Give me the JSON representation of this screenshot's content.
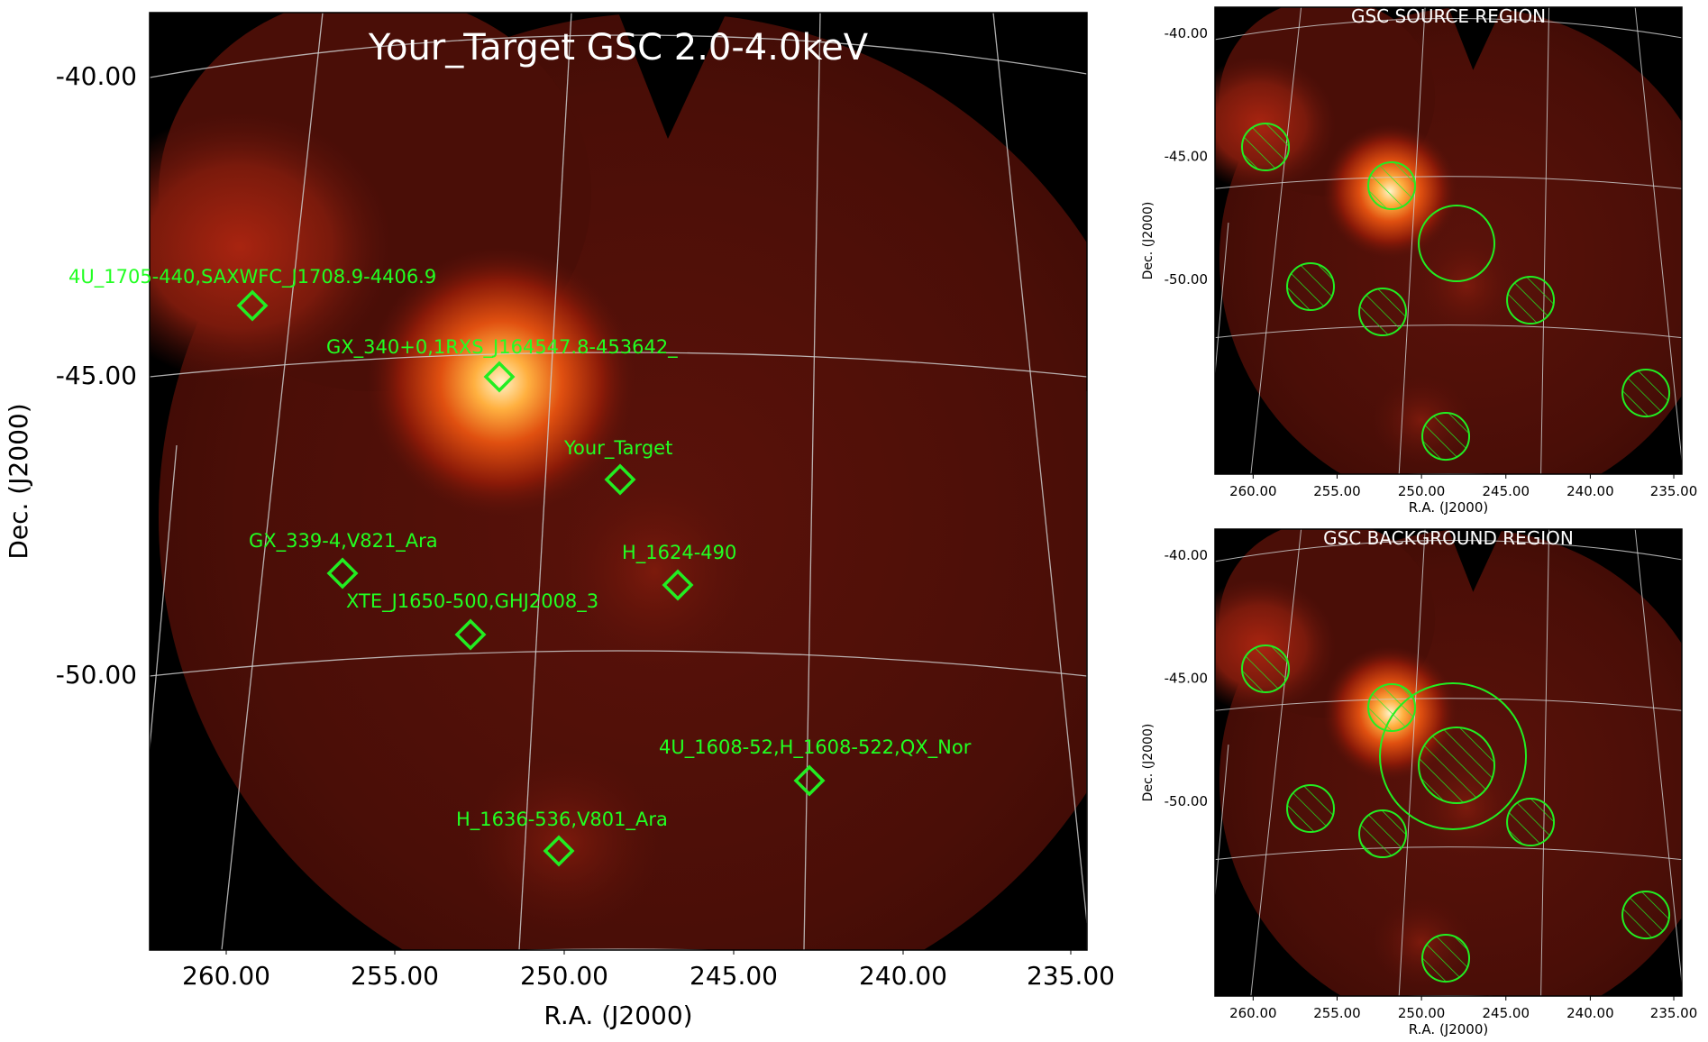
{
  "main_panel": {
    "title": "Your_Target GSC 2.0-4.0keV",
    "xlabel": "R.A. (J2000)",
    "ylabel": "Dec. (J2000)",
    "xticks": [
      "260.00",
      "255.00",
      "250.00",
      "245.00",
      "240.00",
      "235.00"
    ],
    "yticks": [
      "-40.00",
      "-45.00",
      "-50.00"
    ],
    "sources": [
      {
        "label": "4U_1705-440,SAXWFC_J1708.9-4406.9"
      },
      {
        "label": "GX_340+0,1RXS_J164547.8-453642_"
      },
      {
        "label": "Your_Target"
      },
      {
        "label": "GX_339-4,V821_Ara"
      },
      {
        "label": "H_1624-490"
      },
      {
        "label": "XTE_J1650-500,GHJ2008_3"
      },
      {
        "label": "4U_1608-52,H_1608-522,QX_Nor"
      },
      {
        "label": "H_1636-536,V801_Ara"
      }
    ]
  },
  "source_panel": {
    "title": "GSC SOURCE REGION",
    "xlabel": "R.A. (J2000)",
    "ylabel": "Dec. (J2000)",
    "xticks": [
      "260.00",
      "255.00",
      "250.00",
      "245.00",
      "240.00",
      "235.00"
    ],
    "yticks": [
      "-40.00",
      "-45.00",
      "-50.00"
    ]
  },
  "background_panel": {
    "title": "GSC BACKGROUND REGION",
    "xlabel": "R.A. (J2000)",
    "ylabel": "Dec. (J2000)",
    "xticks": [
      "260.00",
      "255.00",
      "250.00",
      "245.00",
      "240.00",
      "235.00"
    ],
    "yticks": [
      "-40.00",
      "-45.00",
      "-50.00"
    ]
  },
  "colors": {
    "region": "#22ee22",
    "grid": "#cccccc",
    "sky_bg": "#000000",
    "emission": "#7a1a0c"
  }
}
